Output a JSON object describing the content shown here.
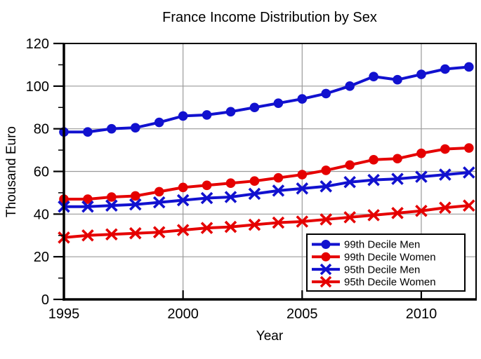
{
  "chart_data": {
    "type": "line",
    "title": "France Income Distribution by Sex",
    "xlabel": "Year",
    "ylabel": "Thousand Euro",
    "x": [
      1995,
      1996,
      1997,
      1998,
      1999,
      2000,
      2001,
      2002,
      2003,
      2004,
      2005,
      2006,
      2007,
      2008,
      2009,
      2010,
      2011,
      2012
    ],
    "series": [
      {
        "name": "99th Decile Men",
        "color": "#1111CF",
        "marker": "circle",
        "values": [
          78.5,
          78.5,
          80,
          80.5,
          83,
          86,
          86.5,
          88,
          90,
          92,
          94,
          96.5,
          100,
          104.5,
          103,
          105.5,
          108,
          109
        ]
      },
      {
        "name": "99th Decile Women",
        "color": "#E50000",
        "marker": "circle",
        "values": [
          47,
          47,
          48,
          48.5,
          50.5,
          52.5,
          53.5,
          54.5,
          55.5,
          57,
          58.5,
          60.5,
          63,
          65.5,
          66,
          68.5,
          70.5,
          71
        ]
      },
      {
        "name": "95th Decile Men",
        "color": "#1111CF",
        "marker": "x",
        "values": [
          43.5,
          43.5,
          44,
          44.5,
          45.5,
          46.5,
          47.5,
          48,
          49.5,
          51,
          52,
          53,
          55,
          56,
          56.5,
          57.5,
          58.5,
          59.5
        ]
      },
      {
        "name": "95th Decile Women",
        "color": "#E50000",
        "marker": "x",
        "values": [
          29,
          30,
          30.5,
          31,
          31.5,
          32.5,
          33.5,
          34,
          35,
          36,
          36.5,
          37.5,
          38.5,
          39.5,
          40.5,
          41.5,
          43,
          44
        ]
      }
    ],
    "xlim": [
      1995,
      2012.3
    ],
    "ylim": [
      0,
      120
    ],
    "xticks": [
      1995,
      2000,
      2005,
      2010
    ],
    "yticks": [
      0,
      20,
      40,
      60,
      80,
      100,
      120
    ],
    "yticks_minor": [
      10,
      30,
      50,
      70,
      90,
      110
    ],
    "grid": true,
    "legend_position": "lower-right",
    "style": {
      "grid_color": "#9A9A9A",
      "axis_color": "#000000",
      "background": "#FFFFFF",
      "legend_border": "#000000",
      "legend_background": "#FFFFFF"
    }
  }
}
